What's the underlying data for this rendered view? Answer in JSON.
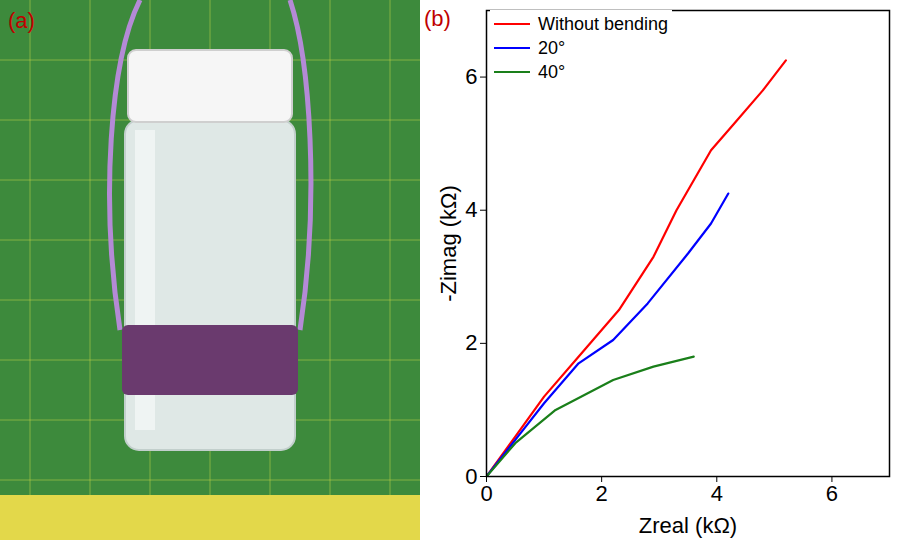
{
  "panel_labels": [
    "(a)",
    "(b)"
  ],
  "chart_data": {
    "type": "line",
    "x_label": "Zreal (kΩ)",
    "y_label": "-Zimag (kΩ)",
    "xlim": [
      0,
      7
    ],
    "ylim": [
      0,
      7
    ],
    "xticks": [
      0,
      2,
      4,
      6
    ],
    "yticks": [
      0,
      2,
      4,
      6
    ],
    "grid": false,
    "legend": "upper left",
    "series": [
      {
        "name": "Without bending",
        "color": "#ff0000",
        "x": [
          0,
          0.5,
          1,
          1.7,
          2.3,
          2.9,
          3.3,
          3.9,
          4.3,
          4.8,
          5.2
        ],
        "values": [
          0,
          0.6,
          1.2,
          1.9,
          2.5,
          3.3,
          4.0,
          4.9,
          5.3,
          5.8,
          6.25
        ]
      },
      {
        "name": "20°",
        "color": "#0000ff",
        "x": [
          0,
          0.5,
          1,
          1.6,
          2.2,
          2.8,
          3.5,
          3.9,
          4.2
        ],
        "values": [
          0,
          0.55,
          1.1,
          1.7,
          2.05,
          2.6,
          3.35,
          3.8,
          4.25
        ]
      },
      {
        "name": "40°",
        "color": "#1a7f1a",
        "x": [
          0,
          0.5,
          1.2,
          2.2,
          2.9,
          3.6
        ],
        "values": [
          0,
          0.5,
          1.0,
          1.45,
          1.65,
          1.8
        ]
      }
    ]
  }
}
